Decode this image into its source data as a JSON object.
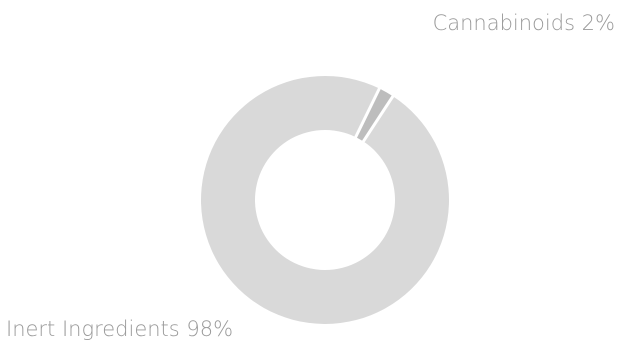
{
  "chart_data": {
    "type": "pie",
    "variant": "donut",
    "title": "",
    "legend": "none",
    "slices": [
      {
        "label": "Cannabinoids",
        "value": 2,
        "display": "Cannabinoids 2%",
        "color": "#bdbdbd"
      },
      {
        "label": "Inert Ingredients",
        "value": 98,
        "display": "Inert Ingredients 98%",
        "color": "#d9d9d9"
      }
    ],
    "label_color": "#9a9a9a",
    "separator_color": "#ffffff"
  }
}
